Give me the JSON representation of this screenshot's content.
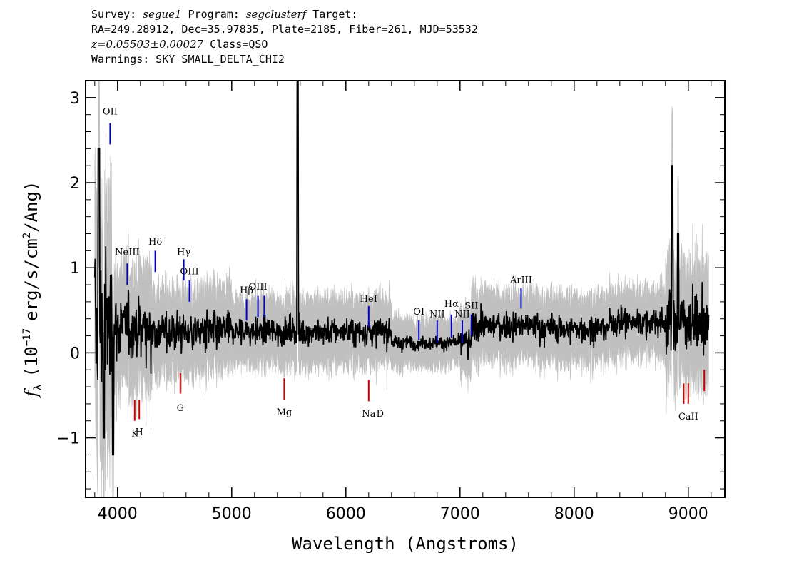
{
  "header": {
    "survey_label": "Survey:",
    "survey": "segue1",
    "program_label": "Program:",
    "program": "segclusterf",
    "target_label": "Target:",
    "coords": "RA=249.28912, Dec=35.97835, Plate=2185, Fiber=261, MJD=53532",
    "z": "z=0.05503±0.00027",
    "class": "Class=QSO",
    "warnings": "Warnings: SKY SMALL_DELTA_CHI2"
  },
  "chart_data": {
    "type": "line",
    "title": "",
    "xlabel": "Wavelength (Angstroms)",
    "ylabel_prefix": "f",
    "ylabel_sub": "λ",
    "ylabel_open": "(10",
    "ylabel_exp": "−17",
    "ylabel_mid": "erg/s/cm",
    "ylabel_exp2": "2",
    "ylabel_end": "/Ang)",
    "xlim": [
      3720,
      9320
    ],
    "ylim": [
      -1.7,
      3.2
    ],
    "grid": false,
    "x_ticks": [
      {
        "value": 4000,
        "label": "4000"
      },
      {
        "value": 5000,
        "label": "5000"
      },
      {
        "value": 6000,
        "label": "6000"
      },
      {
        "value": 7000,
        "label": "7000"
      },
      {
        "value": 8000,
        "label": "8000"
      },
      {
        "value": 9000,
        "label": "9000"
      }
    ],
    "y_ticks": [
      {
        "value": -1,
        "label": "−1"
      },
      {
        "value": 0,
        "label": "0"
      },
      {
        "value": 1,
        "label": "1"
      },
      {
        "value": 2,
        "label": "2"
      },
      {
        "value": 3,
        "label": "3"
      }
    ],
    "series": [
      {
        "role": "flux",
        "color": "#000000",
        "x_range": [
          3800,
          9180
        ]
      },
      {
        "role": "error",
        "color": "#c0c0c0",
        "x_range": [
          3800,
          9180
        ]
      }
    ],
    "emission_lines": [
      {
        "label": "OII",
        "x": 3935,
        "y_label": 2.8,
        "y1": 2.45,
        "y2": 2.7,
        "color": "#0000cc"
      },
      {
        "label": "NeIII",
        "x": 4085,
        "y_label": 1.15,
        "y1": 0.8,
        "y2": 1.05,
        "color": "#0000cc"
      },
      {
        "label": "Hδ",
        "x": 4330,
        "y_label": 1.27,
        "y1": 0.95,
        "y2": 1.2,
        "color": "#0000cc"
      },
      {
        "label": "Hγ",
        "x": 4580,
        "y_label": 1.15,
        "y1": 0.85,
        "y2": 1.1,
        "color": "#0000cc"
      },
      {
        "label": "OIII",
        "x": 4630,
        "y_label": 0.92,
        "y1": 0.6,
        "y2": 0.85,
        "color": "#0000cc"
      },
      {
        "label": "Hβ",
        "x": 5130,
        "y_label": 0.7,
        "y1": 0.38,
        "y2": 0.63,
        "color": "#0000cc"
      },
      {
        "label": "OIII",
        "x": 5230,
        "y_label": 0.74,
        "y1": 0.42,
        "y2": 0.67,
        "color": "#0000cc"
      },
      {
        "label": "",
        "x": 5285,
        "y_label": 0,
        "y1": 0.42,
        "y2": 0.67,
        "color": "#0000cc"
      },
      {
        "label": "HeI",
        "x": 6200,
        "y_label": 0.6,
        "y1": 0.3,
        "y2": 0.55,
        "color": "#0000cc"
      },
      {
        "label": "OI",
        "x": 6640,
        "y_label": 0.45,
        "y1": 0.15,
        "y2": 0.38,
        "color": "#0000cc"
      },
      {
        "label": "NII",
        "x": 6800,
        "y_label": 0.42,
        "y1": 0.12,
        "y2": 0.38,
        "color": "#0000cc"
      },
      {
        "label": "Hα",
        "x": 6925,
        "y_label": 0.54,
        "y1": 0.18,
        "y2": 0.45,
        "color": "#0000cc"
      },
      {
        "label": "NII",
        "x": 7020,
        "y_label": 0.42,
        "y1": 0.12,
        "y2": 0.38,
        "color": "#0000cc"
      },
      {
        "label": "SII",
        "x": 7100,
        "y_label": 0.52,
        "y1": 0.2,
        "y2": 0.45,
        "color": "#0000cc"
      },
      {
        "label": "ArIII",
        "x": 7535,
        "y_label": 0.82,
        "y1": 0.52,
        "y2": 0.76,
        "color": "#0000cc"
      }
    ],
    "absorption_lines": [
      {
        "label": "K",
        "x": 4150,
        "y_label": -0.9,
        "y1": -0.8,
        "y2": -0.55,
        "color": "#cc0000"
      },
      {
        "label": "H",
        "x": 4190,
        "y_label": -0.88,
        "y1": -0.78,
        "y2": -0.55,
        "color": "#cc0000"
      },
      {
        "label": "G",
        "x": 4550,
        "y_label": -0.6,
        "y1": -0.48,
        "y2": -0.24,
        "color": "#cc0000"
      },
      {
        "label": "Mg",
        "x": 5460,
        "y_label": -0.65,
        "y1": -0.55,
        "y2": -0.3,
        "color": "#cc0000"
      },
      {
        "label": "Na",
        "x": 6200,
        "y_label": -0.67,
        "y1": -0.57,
        "y2": -0.32,
        "color": "#cc0000"
      },
      {
        "label": "D",
        "x": 6300,
        "y_label": -0.67,
        "y1": 0,
        "y2": 0,
        "color": "#cc0000"
      },
      {
        "label": "CaII",
        "x": 9000,
        "y_label": -0.7,
        "y1": -0.6,
        "y2": -0.36,
        "color": "#cc0000"
      },
      {
        "label": "",
        "x": 8960,
        "y_label": 0,
        "y1": -0.6,
        "y2": -0.36,
        "color": "#cc0000"
      },
      {
        "label": "",
        "x": 9140,
        "y_label": 0,
        "y1": -0.45,
        "y2": -0.2,
        "color": "#cc0000"
      }
    ]
  }
}
